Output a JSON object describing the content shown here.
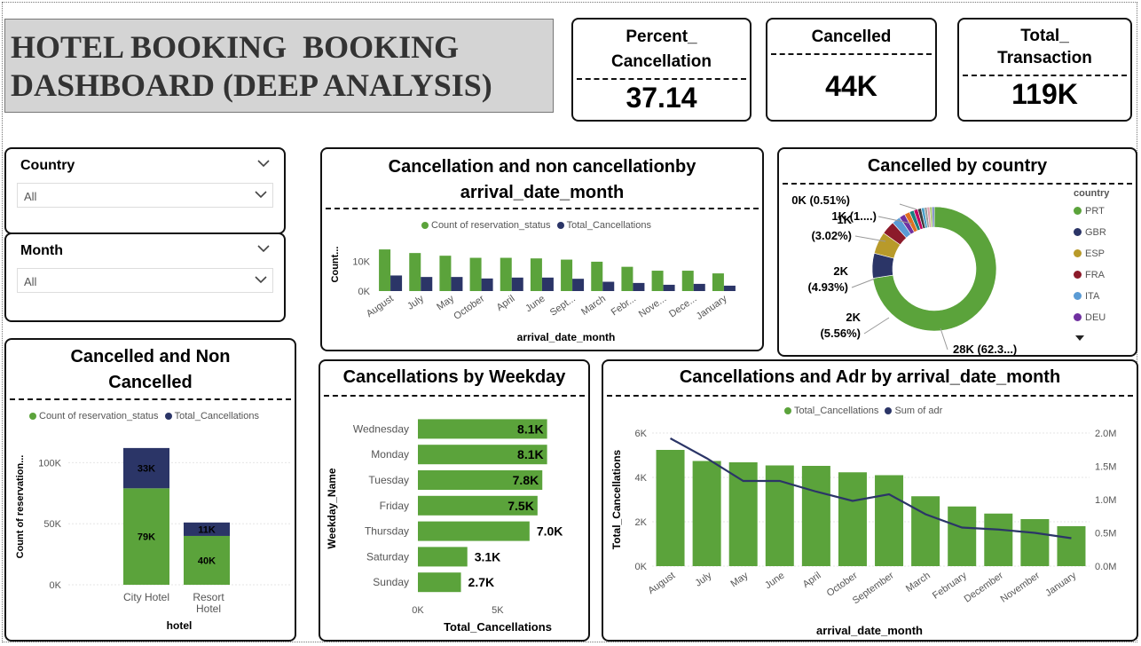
{
  "header": {
    "title": "HOTEL BOOKING  BOOKING\nDASHBOARD (DEEP ANALYSIS)"
  },
  "kpis": {
    "percent_cancellation": {
      "label": "Percent_\nCancellation",
      "value": "37.14"
    },
    "cancelled": {
      "label": "Cancelled",
      "value": "44K"
    },
    "total_transaction": {
      "label": "Total_\nTransaction",
      "value": "119K"
    }
  },
  "filters": {
    "country": {
      "label": "Country",
      "value": "All"
    },
    "month": {
      "label": "Month",
      "value": "All"
    }
  },
  "colors": {
    "green": "#5ba33b",
    "navy": "#2b3567",
    "grid": "#e6e6e6"
  },
  "icons": {
    "chevron": "chevron-down-icon",
    "more": "caret-down-icon"
  },
  "chart_data": [
    {
      "id": "month_bars",
      "type": "bar",
      "title": "Cancellation and non cancellationby\narrival_date_month",
      "xlabel": "arrival_date_month",
      "ylabel": "Count...",
      "legend": [
        "Count of reservation_status",
        "Total_Cancellations"
      ],
      "categories": [
        "August",
        "July",
        "May",
        "October",
        "April",
        "June",
        "Sept...",
        "March",
        "Febr...",
        "Nove...",
        "Dece...",
        "January"
      ],
      "series": [
        {
          "name": "Count of reservation_status",
          "values": [
            13900,
            12700,
            11800,
            11100,
            11100,
            10900,
            10500,
            9800,
            8100,
            6800,
            6800,
            5900
          ]
        },
        {
          "name": "Total_Cancellations",
          "values": [
            5200,
            4700,
            4700,
            4200,
            4500,
            4500,
            4100,
            3100,
            2700,
            2100,
            2400,
            1800
          ]
        }
      ],
      "yticks": [
        "0K",
        "10K"
      ],
      "ylim": [
        0,
        16000
      ]
    },
    {
      "id": "country_donut",
      "type": "pie",
      "title": "Cancelled by country",
      "legend_title": "country",
      "legend": [
        "PRT",
        "GBR",
        "ESP",
        "FRA",
        "ITA",
        "DEU"
      ],
      "slices": [
        {
          "name": "PRT",
          "value": 62.3,
          "color": "#5ba33b"
        },
        {
          "name": "GBR",
          "value": 5.56,
          "color": "#2b3567"
        },
        {
          "name": "ESP",
          "value": 4.93,
          "color": "#b89a2a"
        },
        {
          "name": "FRA",
          "value": 3.02,
          "color": "#8c1a2a"
        },
        {
          "name": "ITA",
          "value": 1.9,
          "color": "#5a9bd5"
        },
        {
          "name": "DEU",
          "value": 1.3,
          "color": "#7030a0"
        },
        {
          "name": "other1",
          "value": 1.2,
          "color": "#e07020"
        },
        {
          "name": "other2",
          "value": 1.0,
          "color": "#1a7f7f"
        },
        {
          "name": "other3",
          "value": 0.9,
          "color": "#c00060"
        },
        {
          "name": "other4",
          "value": 0.8,
          "color": "#3a3a3a"
        },
        {
          "name": "other5",
          "value": 0.7,
          "color": "#4aa0c8"
        },
        {
          "name": "other6",
          "value": 0.6,
          "color": "#9a9a9a"
        },
        {
          "name": "other7",
          "value": 0.6,
          "color": "#e0a0b0"
        },
        {
          "name": "other8",
          "value": 0.5,
          "color": "#a0c060"
        },
        {
          "name": "other9",
          "value": 0.51,
          "color": "#7080c0"
        }
      ],
      "labels": [
        "0K (0.51%)",
        "1K (1....)",
        "1K\n(3.02%)",
        "2K\n(4.93%)",
        "2K\n(5.56%)",
        "28K (62.3...)"
      ]
    },
    {
      "id": "hotel_stacked",
      "type": "bar",
      "title": "Cancelled and Non\nCancelled",
      "xlabel": "hotel",
      "ylabel": "Count of reservation...",
      "legend": [
        "Count of reservation_status",
        "Total_Cancellations"
      ],
      "categories": [
        "City Hotel",
        "Resort\nHotel"
      ],
      "series": [
        {
          "name": "Count of reservation_status",
          "values": [
            79000,
            40000
          ],
          "labels": [
            "79K",
            "40K"
          ]
        },
        {
          "name": "Total_Cancellations",
          "values": [
            33000,
            11000
          ],
          "labels": [
            "33K",
            "11K"
          ]
        }
      ],
      "yticks": [
        "0K",
        "50K",
        "100K"
      ],
      "ylim": [
        0,
        125000
      ]
    },
    {
      "id": "weekday_bars",
      "type": "bar",
      "title": "Cancellations by Weekday",
      "xlabel": "Total_Cancellations",
      "ylabel": "Weekday_Name",
      "categories": [
        "Wednesday",
        "Monday",
        "Tuesday",
        "Friday",
        "Thursday",
        "Saturday",
        "Sunday"
      ],
      "values": [
        8100,
        8100,
        7800,
        7500,
        7000,
        3100,
        2700
      ],
      "labels": [
        "8.1K",
        "8.1K",
        "7.8K",
        "7.5K",
        "7.0K",
        "3.1K",
        "2.7K"
      ],
      "xticks": [
        "0K",
        "5K"
      ],
      "xlim": [
        0,
        8900
      ]
    },
    {
      "id": "adr_combo",
      "type": "bar",
      "title": "Cancellations and Adr by arrival_date_month",
      "xlabel": "arrival_date_month",
      "ylabel": "Total_Cancellations",
      "legend": [
        "Total_Cancellations",
        "Sum of adr"
      ],
      "categories": [
        "August",
        "July",
        "May",
        "June",
        "April",
        "October",
        "September",
        "March",
        "February",
        "December",
        "November",
        "January"
      ],
      "series": [
        {
          "name": "Total_Cancellations",
          "values": [
            5240,
            4740,
            4680,
            4540,
            4520,
            4230,
            4100,
            3150,
            2690,
            2370,
            2120,
            1800
          ]
        },
        {
          "name": "Sum of adr",
          "values": [
            1920000,
            1620000,
            1280000,
            1280000,
            1120000,
            980000,
            1080000,
            780000,
            580000,
            550000,
            500000,
            420000
          ]
        }
      ],
      "yticks": [
        "0K",
        "2K",
        "4K",
        "6K"
      ],
      "y2ticks": [
        "0.0M",
        "0.5M",
        "1.0M",
        "1.5M",
        "2.0M"
      ],
      "ylim": [
        0,
        6000
      ],
      "y2lim": [
        0,
        2000000
      ]
    }
  ]
}
